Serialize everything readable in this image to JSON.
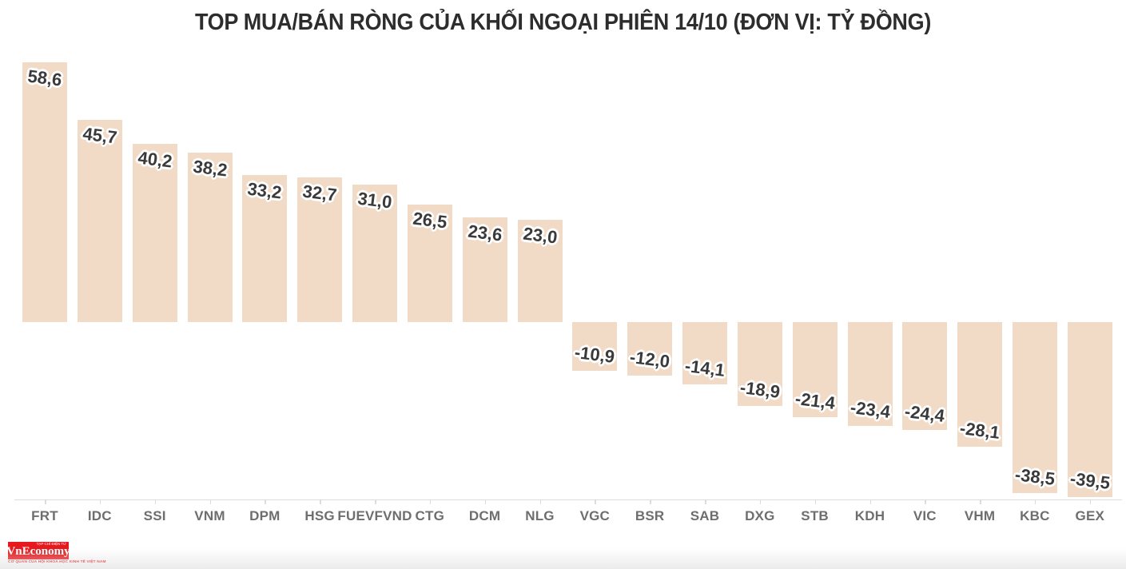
{
  "title": "TOP MUA/BÁN RÒNG CỦA KHỐI NGOẠI PHIÊN 14/10 (ĐƠN VỊ: TỶ ĐỒNG)",
  "chart_data": {
    "type": "bar",
    "title": "TOP MUA/BÁN RÒNG CỦA KHỐI NGOẠI PHIÊN 14/10 (ĐƠN VỊ: TỶ ĐỒNG)",
    "categories": [
      "FRT",
      "IDC",
      "SSI",
      "VNM",
      "DPM",
      "HSG",
      "FUEVFVND",
      "CTG",
      "DCM",
      "NLG",
      "VGC",
      "BSR",
      "SAB",
      "DXG",
      "STB",
      "KDH",
      "VIC",
      "VHM",
      "KBC",
      "GEX"
    ],
    "values": [
      58.6,
      45.7,
      40.2,
      38.2,
      33.2,
      32.7,
      31.0,
      26.5,
      23.6,
      23.0,
      -10.9,
      -12.0,
      -14.1,
      -18.9,
      -21.4,
      -23.4,
      -24.4,
      -28.1,
      -38.5,
      -39.5
    ],
    "value_labels": [
      "58,6",
      "45,7",
      "40,2",
      "38,2",
      "33,2",
      "32,7",
      "31,0",
      "26,5",
      "23,6",
      "23,0",
      "-10,9",
      "-12,0",
      "-14,1",
      "-18,9",
      "-21,4",
      "-23,4",
      "-24,4",
      "-28,1",
      "-38,5",
      "-39,5"
    ],
    "xlabel": "",
    "ylabel": "",
    "ylim": [
      -40,
      60
    ],
    "grid": false,
    "legend": "none",
    "unit": "tỷ đồng",
    "colors": {
      "bar": "#f2dbc6",
      "value_label": "#3a3a3a",
      "value_label_outline": "#ffffff",
      "axis": "#dcdcdc",
      "tick_label": "#6e6e6e",
      "title": "#2d2d2d",
      "background": "#ffffff"
    }
  },
  "footer": {
    "logo_text": "VnEconomy",
    "logo_small_top": "TẠP CHÍ ĐIỆN TỬ",
    "logo_tagline": "CƠ QUAN CỦA HỘI KHOA HỌC KINH TẾ VIỆT NAM",
    "logo_bg": "#e6191e"
  }
}
